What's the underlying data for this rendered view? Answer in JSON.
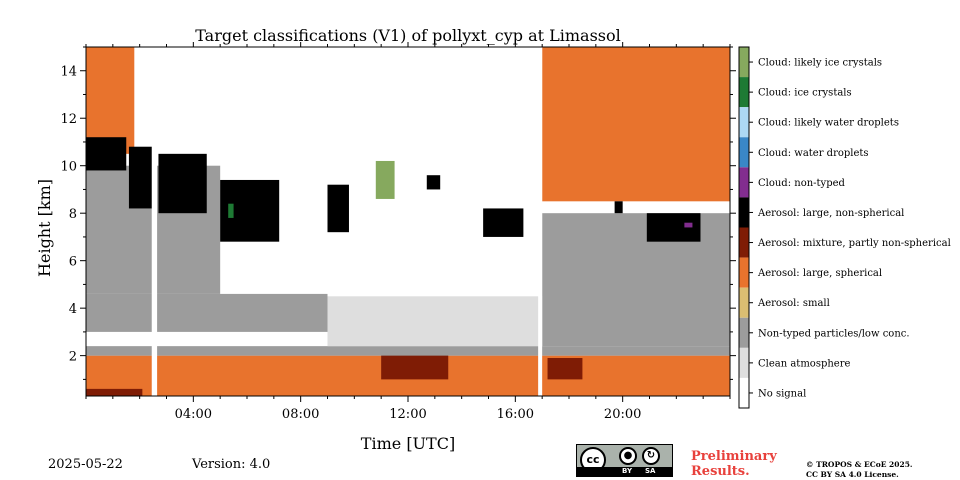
{
  "chart_data": {
    "type": "heatmap",
    "title": "Target classifications (V1) of pollyxt_cyp at Limassol",
    "xlabel": "Time [UTC]",
    "ylabel": "Height [km]",
    "xlim_hours": [
      0,
      24
    ],
    "ylim_km": [
      0.3,
      15
    ],
    "x_ticks": [
      "04:00",
      "08:00",
      "12:00",
      "16:00",
      "20:00"
    ],
    "x_tick_hours": [
      4,
      8,
      12,
      16,
      20
    ],
    "y_ticks": [
      "2",
      "4",
      "6",
      "8",
      "10",
      "12",
      "14"
    ],
    "y_tick_values": [
      2,
      4,
      6,
      8,
      10,
      12,
      14
    ],
    "legend_placement": "right colorbar",
    "classes": [
      {
        "label": "Cloud: likely ice crystals",
        "color": "#86a95e"
      },
      {
        "label": "Cloud: ice crystals",
        "color": "#1e7a34"
      },
      {
        "label": "Cloud: likely water droplets",
        "color": "#add8f4"
      },
      {
        "label": "Cloud: water droplets",
        "color": "#3a87c7"
      },
      {
        "label": "Cloud: non-typed",
        "color": "#822d8f"
      },
      {
        "label": "Aerosol: large, non-spherical",
        "color": "#000000"
      },
      {
        "label": "Aerosol: mixture, partly non-spherical",
        "color": "#7f1c05"
      },
      {
        "label": "Aerosol: large, spherical",
        "color": "#e8732d"
      },
      {
        "label": "Aerosol: small",
        "color": "#dbbe72"
      },
      {
        "label": "Non-typed particles/low conc.",
        "color": "#9c9c9c"
      },
      {
        "label": "Clean atmosphere",
        "color": "#dedede"
      },
      {
        "label": "No signal",
        "color": "#ffffff"
      }
    ],
    "regions": [
      {
        "class": "Aerosol: large, spherical",
        "t": [
          0.0,
          24.0
        ],
        "h": [
          0.3,
          2.0
        ]
      },
      {
        "class": "Aerosol: mixture, partly non-spherical",
        "t": [
          0.0,
          2.1
        ],
        "h": [
          0.3,
          0.6
        ]
      },
      {
        "class": "Aerosol: mixture, partly non-spherical",
        "t": [
          11.0,
          13.5
        ],
        "h": [
          1.0,
          2.1
        ]
      },
      {
        "class": "Aerosol: mixture, partly non-spherical",
        "t": [
          17.2,
          18.5
        ],
        "h": [
          1.0,
          1.9
        ]
      },
      {
        "class": "Non-typed particles/low conc.",
        "t": [
          0.0,
          24.0
        ],
        "h": [
          2.0,
          2.4
        ]
      },
      {
        "class": "Non-typed particles/low conc.",
        "t": [
          0.0,
          9.0
        ],
        "h": [
          3.0,
          4.6
        ]
      },
      {
        "class": "Non-typed particles/low conc.",
        "t": [
          0.0,
          5.0
        ],
        "h": [
          4.6,
          10.0
        ]
      },
      {
        "class": "Non-typed particles/low conc.",
        "t": [
          17.0,
          24.0
        ],
        "h": [
          2.4,
          8.0
        ]
      },
      {
        "class": "Clean atmosphere",
        "t": [
          9.0,
          17.0
        ],
        "h": [
          2.4,
          4.5
        ]
      },
      {
        "class": "Aerosol: large, spherical",
        "t": [
          0.0,
          1.8
        ],
        "h": [
          10.5,
          15.0
        ]
      },
      {
        "class": "Aerosol: large, spherical",
        "t": [
          17.0,
          24.0
        ],
        "h": [
          8.5,
          15.0
        ]
      },
      {
        "class": "Aerosol: large, non-spherical",
        "t": [
          0.0,
          1.5
        ],
        "h": [
          9.8,
          11.2
        ]
      },
      {
        "class": "Aerosol: large, non-spherical",
        "t": [
          1.6,
          2.5
        ],
        "h": [
          8.2,
          10.8
        ]
      },
      {
        "class": "Aerosol: large, non-spherical",
        "t": [
          2.7,
          4.5
        ],
        "h": [
          8.0,
          10.5
        ]
      },
      {
        "class": "Aerosol: large, non-spherical",
        "t": [
          5.0,
          7.2
        ],
        "h": [
          6.8,
          9.4
        ]
      },
      {
        "class": "Aerosol: large, non-spherical",
        "t": [
          9.0,
          9.8
        ],
        "h": [
          7.2,
          9.2
        ]
      },
      {
        "class": "Aerosol: large, non-spherical",
        "t": [
          12.7,
          13.2
        ],
        "h": [
          9.0,
          9.6
        ]
      },
      {
        "class": "Aerosol: large, non-spherical",
        "t": [
          14.8,
          16.3
        ],
        "h": [
          7.0,
          8.2
        ]
      },
      {
        "class": "Aerosol: large, non-spherical",
        "t": [
          19.7,
          20.0
        ],
        "h": [
          8.0,
          8.5
        ]
      },
      {
        "class": "Aerosol: large, non-spherical",
        "t": [
          20.9,
          22.9
        ],
        "h": [
          6.8,
          8.0
        ]
      },
      {
        "class": "Cloud: likely ice crystals",
        "t": [
          10.8,
          11.5
        ],
        "h": [
          8.6,
          10.2
        ]
      },
      {
        "class": "Cloud: ice crystals",
        "t": [
          5.3,
          5.5
        ],
        "h": [
          7.8,
          8.4
        ]
      },
      {
        "class": "Cloud: non-typed",
        "t": [
          22.3,
          22.6
        ],
        "h": [
          7.4,
          7.6
        ]
      },
      {
        "class": "No signal",
        "t": [
          2.45,
          2.65
        ],
        "h": [
          0.3,
          15.0
        ]
      },
      {
        "class": "No signal",
        "t": [
          16.85,
          17.0
        ],
        "h": [
          0.3,
          15.0
        ]
      }
    ]
  },
  "footer": {
    "date": "2025-05-22",
    "version": "Version: 4.0",
    "preliminary_line1": "Preliminary",
    "preliminary_line2": "Results.",
    "license_line1": "© TROPOS & ECoE 2025.",
    "license_line2": "CC BY SA 4.0 License.",
    "cc_by": "BY",
    "cc_sa": "SA",
    "cc_text": "cc"
  },
  "icons": [
    "cc-logo-icon",
    "by-attribution-icon",
    "sa-sharealike-icon"
  ]
}
